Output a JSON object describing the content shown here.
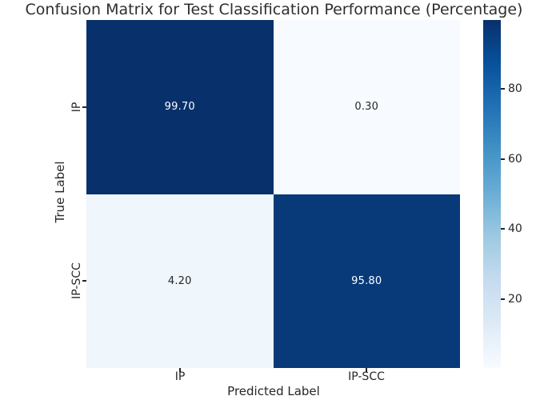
{
  "chart_data": {
    "type": "heatmap",
    "title": "Confusion Matrix for Test Classification Performance (Percentage)",
    "xlabel": "Predicted Label",
    "ylabel": "True Label",
    "x_tick_labels": [
      "IP",
      "IP-SCC"
    ],
    "y_tick_labels": [
      "IP",
      "IP-SCC"
    ],
    "matrix": [
      [
        99.7,
        0.3
      ],
      [
        4.2,
        95.8
      ]
    ],
    "cell_labels": [
      [
        "99.70",
        "0.30"
      ],
      [
        "4.20",
        "95.80"
      ]
    ],
    "cell_colors": [
      [
        "#08306b",
        "#f7fbff"
      ],
      [
        "#eff6fc",
        "#083a7a"
      ]
    ],
    "cell_text_colors": [
      [
        "#ffffff",
        "#262626"
      ],
      [
        "#262626",
        "#ffffff"
      ]
    ],
    "colorbar": {
      "colormap": "Blues",
      "vmin": 0.3,
      "vmax": 99.7,
      "ticks": [
        "20",
        "40",
        "60",
        "80"
      ],
      "gradient_stops": [
        "#f7fbff",
        "#deebf7",
        "#c6dbef",
        "#9ecae1",
        "#6baed6",
        "#4292c6",
        "#2171b5",
        "#08519c",
        "#08306b"
      ]
    },
    "grid": false,
    "legend_position": "right-colorbar",
    "units": "percent"
  }
}
